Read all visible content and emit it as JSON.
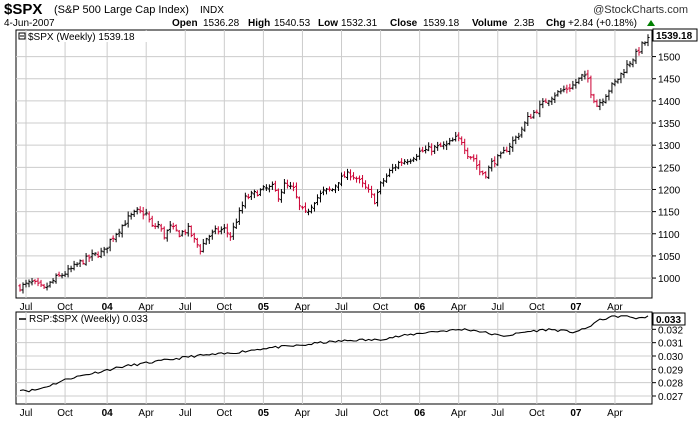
{
  "header": {
    "symbol": "$SPX",
    "name": "(S&P 500 Large Cap Index)",
    "exchange": "INDX",
    "date": "4-Jun-2007",
    "brand": "@StockCharts.com",
    "open_label": "Open",
    "open": "1536.28",
    "high_label": "High",
    "high": "1540.53",
    "low_label": "Low",
    "low": "1532.31",
    "close_label": "Close",
    "close": "1539.18",
    "volume_label": "Volume",
    "volume": "2.3B",
    "chg_label": "Chg",
    "chg": "+2.84 (+0.18%)",
    "up_color": "#008000"
  },
  "chart_data": [
    {
      "type": "ohlc",
      "legend": "$SPX (Weekly) 1539.18",
      "last_value": "1539.18",
      "y_ticks": [
        1000,
        1050,
        1100,
        1150,
        1200,
        1250,
        1300,
        1350,
        1400,
        1450,
        1500
      ],
      "ylim": [
        955,
        1560
      ],
      "x_ticks": [
        "Jul",
        "Oct",
        "04",
        "Apr",
        "Jul",
        "Oct",
        "05",
        "Apr",
        "Jul",
        "Oct",
        "06",
        "Apr",
        "Jul",
        "Oct",
        "07",
        "Apr"
      ],
      "x_tick_bold": [
        false,
        false,
        true,
        false,
        false,
        false,
        true,
        false,
        false,
        false,
        true,
        false,
        false,
        false,
        true,
        false
      ],
      "x_tick_index": [
        2,
        15,
        29,
        42,
        55,
        68,
        81,
        94,
        107,
        120,
        133,
        146,
        159,
        172,
        185,
        198
      ],
      "bar_count": 210,
      "up_color": "#000000",
      "down_color": "#cc0033",
      "close_anchors": [
        [
          0,
          980
        ],
        [
          4,
          990
        ],
        [
          8,
          975
        ],
        [
          12,
          1000
        ],
        [
          16,
          1015
        ],
        [
          20,
          1035
        ],
        [
          24,
          1050
        ],
        [
          28,
          1060
        ],
        [
          30,
          1085
        ],
        [
          33,
          1110
        ],
        [
          36,
          1135
        ],
        [
          39,
          1150
        ],
        [
          42,
          1145
        ],
        [
          44,
          1115
        ],
        [
          46,
          1120
        ],
        [
          48,
          1095
        ],
        [
          50,
          1115
        ],
        [
          53,
          1100
        ],
        [
          56,
          1110
        ],
        [
          58,
          1085
        ],
        [
          60,
          1065
        ],
        [
          62,
          1090
        ],
        [
          65,
          1105
        ],
        [
          68,
          1110
        ],
        [
          70,
          1095
        ],
        [
          72,
          1130
        ],
        [
          75,
          1180
        ],
        [
          78,
          1190
        ],
        [
          81,
          1200
        ],
        [
          84,
          1205
        ],
        [
          86,
          1185
        ],
        [
          88,
          1210
        ],
        [
          91,
          1200
        ],
        [
          93,
          1160
        ],
        [
          95,
          1145
        ],
        [
          98,
          1175
        ],
        [
          101,
          1195
        ],
        [
          104,
          1200
        ],
        [
          106,
          1220
        ],
        [
          108,
          1230
        ],
        [
          110,
          1235
        ],
        [
          112,
          1225
        ],
        [
          114,
          1210
        ],
        [
          116,
          1195
        ],
        [
          118,
          1175
        ],
        [
          120,
          1210
        ],
        [
          123,
          1240
        ],
        [
          126,
          1260
        ],
        [
          130,
          1270
        ],
        [
          133,
          1285
        ],
        [
          136,
          1290
        ],
        [
          139,
          1295
        ],
        [
          142,
          1300
        ],
        [
          145,
          1315
        ],
        [
          147,
          1310
        ],
        [
          149,
          1280
        ],
        [
          151,
          1270
        ],
        [
          153,
          1240
        ],
        [
          155,
          1235
        ],
        [
          157,
          1260
        ],
        [
          160,
          1275
        ],
        [
          163,
          1300
        ],
        [
          166,
          1325
        ],
        [
          169,
          1360
        ],
        [
          172,
          1380
        ],
        [
          175,
          1400
        ],
        [
          178,
          1415
        ],
        [
          181,
          1425
        ],
        [
          184,
          1435
        ],
        [
          187,
          1455
        ],
        [
          189,
          1450
        ],
        [
          190,
          1420
        ],
        [
          192,
          1390
        ],
        [
          194,
          1405
        ],
        [
          196,
          1425
        ],
        [
          199,
          1450
        ],
        [
          202,
          1480
        ],
        [
          205,
          1505
        ],
        [
          207,
          1525
        ],
        [
          209,
          1539
        ]
      ]
    },
    {
      "type": "line",
      "legend": "RSP:$SPX (Weekly) 0.033",
      "last_value": "0.033",
      "y_ticks": [
        0.027,
        0.028,
        0.029,
        0.03,
        0.031,
        0.032
      ],
      "y_tick_labels": [
        "0.027",
        "0.028",
        "0.029",
        "0.030",
        "0.031",
        "0.032"
      ],
      "ylim": [
        0.0264,
        0.0333
      ],
      "line_color": "#000000",
      "anchors": [
        [
          0,
          0.0275
        ],
        [
          3,
          0.0274
        ],
        [
          6,
          0.0275
        ],
        [
          10,
          0.0278
        ],
        [
          16,
          0.0283
        ],
        [
          22,
          0.0286
        ],
        [
          28,
          0.0289
        ],
        [
          34,
          0.0292
        ],
        [
          40,
          0.0294
        ],
        [
          46,
          0.0296
        ],
        [
          52,
          0.0298
        ],
        [
          58,
          0.03
        ],
        [
          64,
          0.0301
        ],
        [
          70,
          0.0302
        ],
        [
          76,
          0.0304
        ],
        [
          82,
          0.0306
        ],
        [
          88,
          0.0307
        ],
        [
          94,
          0.0308
        ],
        [
          100,
          0.031
        ],
        [
          106,
          0.0311
        ],
        [
          112,
          0.0312
        ],
        [
          118,
          0.0312
        ],
        [
          124,
          0.0314
        ],
        [
          130,
          0.0316
        ],
        [
          136,
          0.0318
        ],
        [
          142,
          0.0319
        ],
        [
          148,
          0.032
        ],
        [
          152,
          0.0319
        ],
        [
          156,
          0.0317
        ],
        [
          160,
          0.0315
        ],
        [
          164,
          0.0316
        ],
        [
          168,
          0.0318
        ],
        [
          172,
          0.0319
        ],
        [
          176,
          0.032
        ],
        [
          180,
          0.0319
        ],
        [
          184,
          0.0318
        ],
        [
          188,
          0.032
        ],
        [
          192,
          0.0326
        ],
        [
          196,
          0.0329
        ],
        [
          200,
          0.033
        ],
        [
          204,
          0.0329
        ],
        [
          206,
          0.0328
        ],
        [
          209,
          0.033
        ]
      ]
    }
  ]
}
